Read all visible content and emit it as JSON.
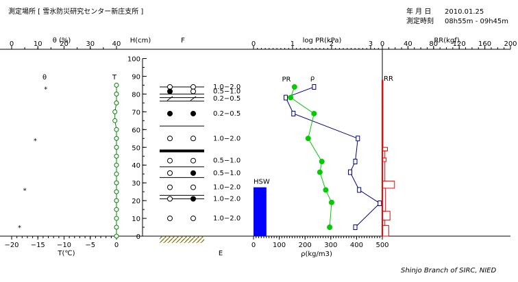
{
  "header": {
    "station": "測定場所 [ 雪氷防災研究センター新庄支所 ]",
    "date_label": "年 月 日",
    "date_value": "2010.01.25",
    "time_label": "測定時刻",
    "time_value": "08h55m - 09h45m"
  },
  "footer": {
    "credit": "Shinjo Branch of SIRC, NIED"
  },
  "colors": {
    "rho": "#000080",
    "pr": "#00cc00",
    "rr": "#ff0000",
    "hsw": "#0000ff",
    "temp": "#008000"
  },
  "chart_data": [
    {
      "type": "scatter",
      "panel": "temperature",
      "title_top": "θ (%)",
      "xlabel_top": "",
      "top_ticks": [
        "0",
        "10",
        "20",
        "30",
        "40"
      ],
      "top_range": [
        0,
        40
      ],
      "xlabel": "T(℃)",
      "bottom_ticks": [
        "−20",
        "−15",
        "−10",
        "−5",
        "0"
      ],
      "bottom_range": [
        -20,
        0
      ],
      "ylabel": "H(cm)",
      "y_ticks": [
        "0",
        "10",
        "20",
        "30",
        "40",
        "50",
        "60",
        "70",
        "80",
        "90",
        "100"
      ],
      "ylim": [
        0,
        100
      ],
      "series": [
        {
          "name": "T",
          "marker": "circle",
          "points": [
            [
              0,
              0
            ],
            [
              0,
              5
            ],
            [
              0,
              10
            ],
            [
              0,
              15
            ],
            [
              0,
              20
            ],
            [
              0,
              25
            ],
            [
              0,
              30
            ],
            [
              0,
              35
            ],
            [
              0,
              40
            ],
            [
              0,
              45
            ],
            [
              0,
              50
            ],
            [
              0,
              55
            ],
            [
              0,
              60
            ],
            [
              -0.3,
              65
            ],
            [
              -0.3,
              70
            ],
            [
              0,
              75
            ],
            [
              0,
              80
            ],
            [
              0,
              85
            ]
          ]
        },
        {
          "name": "θ",
          "marker": "asterisk",
          "points": [
            [
              13,
              83
            ],
            [
              9,
              54
            ],
            [
              5,
              26
            ],
            [
              3,
              5
            ]
          ]
        }
      ]
    },
    {
      "type": "table",
      "panel": "layers",
      "header": "F",
      "footer": "E",
      "boundaries": [
        84,
        80,
        78,
        76,
        62,
        48,
        39,
        33,
        23,
        21
      ],
      "thick_boundary": 48,
      "layers": [
        {
          "label": "1.0−2.0",
          "h": 84,
          "s1": "open",
          "s2": "open"
        },
        {
          "label": "0.5−1.0",
          "h": 81.5,
          "s1": "filled",
          "s2": "open"
        },
        {
          "label": "0.2−0.5",
          "h": 77.5,
          "s1": "slash",
          "s2": "slash"
        },
        {
          "label": "0.2−0.5",
          "h": 69,
          "s1": "filled",
          "s2": "filled"
        },
        {
          "label": "1.0−2.0",
          "h": 55,
          "s1": "open",
          "s2": "open"
        },
        {
          "label": "0.5−1.0",
          "h": 42.5,
          "s1": "open",
          "s2": "open"
        },
        {
          "label": "0.5−1.0",
          "h": 35.5,
          "s1": "open",
          "s2": "filled"
        },
        {
          "label": "1.0−2.0",
          "h": 27.5,
          "s1": "open",
          "s2": "open"
        },
        {
          "label": "1.0−2.0",
          "h": 21,
          "s1": "open",
          "s2": "filled"
        },
        {
          "label": "1.0−2.0",
          "h": 10,
          "s1": "open",
          "s2": "open"
        }
      ]
    },
    {
      "type": "line",
      "panel": "density",
      "xlabel_top": "log PR(kPa)",
      "top_ticks": [
        "0",
        "1",
        "2",
        "3"
      ],
      "top_range": [
        0,
        3.3
      ],
      "xlabel": "ρ(kg/m3)",
      "bottom_ticks": [
        "0",
        "100",
        "200",
        "300",
        "400",
        "500"
      ],
      "bottom_range": [
        0,
        500
      ],
      "series": [
        {
          "name": "ρ",
          "marker": "square",
          "points": [
            [
              235,
              84
            ],
            [
              125,
              78
            ],
            [
              155,
              69
            ],
            [
              405,
              55
            ],
            [
              395,
              42
            ],
            [
              375,
              36
            ],
            [
              410,
              26
            ],
            [
              490,
              18.5
            ],
            [
              395,
              5
            ]
          ]
        },
        {
          "name": "PR",
          "marker": "circle",
          "points": [
            [
              1.05,
              84
            ],
            [
              0.95,
              78
            ],
            [
              1.55,
              69
            ],
            [
              1.4,
              55
            ],
            [
              1.75,
              42
            ],
            [
              1.7,
              36
            ],
            [
              1.85,
              26
            ],
            [
              2.0,
              19
            ],
            [
              1.95,
              5
            ]
          ]
        }
      ],
      "hsw": {
        "label": "HSW",
        "value": 50,
        "height": 27.5
      }
    },
    {
      "type": "bar",
      "panel": "ram_resistance",
      "xlabel_top": "RR(kgf)",
      "top_ticks": [
        "0",
        "40",
        "80",
        "120",
        "160",
        "200"
      ],
      "top_range": [
        0,
        200
      ],
      "series": [
        {
          "name": "RR",
          "steps": [
            [
              1,
              88,
              73
            ],
            [
              1,
              73,
              50
            ],
            [
              8,
              50,
              48
            ],
            [
              4,
              48,
              44
            ],
            [
              6,
              44,
              42
            ],
            [
              4,
              42,
              31
            ],
            [
              19,
              31,
              27
            ],
            [
              5,
              27,
              14
            ],
            [
              12,
              14,
              9
            ],
            [
              4,
              9,
              6
            ],
            [
              10,
              6,
              0
            ]
          ]
        }
      ]
    }
  ]
}
